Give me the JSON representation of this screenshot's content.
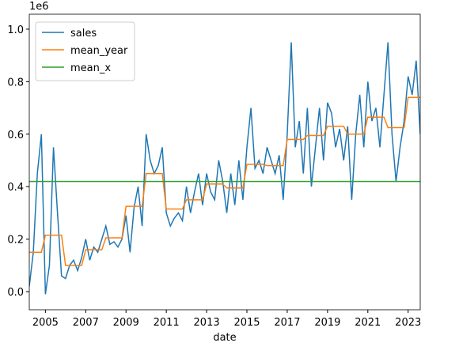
{
  "chart_data": {
    "type": "line",
    "x_label": "date",
    "offset_label": "1e6",
    "xlim": [
      2004.2,
      2023.6
    ],
    "ylim": [
      -0.069,
      1.057
    ],
    "xticks": [
      2005,
      2007,
      2009,
      2011,
      2013,
      2015,
      2017,
      2019,
      2021,
      2023
    ],
    "yticks": [
      {
        "value": 0,
        "label": "0.0"
      },
      {
        "value": 0.2,
        "label": "0.2"
      },
      {
        "value": 0.4,
        "label": "0.4"
      },
      {
        "value": 0.6,
        "label": "0.6"
      },
      {
        "value": 0.8,
        "label": "0.8"
      },
      {
        "value": 1,
        "label": "1.0"
      }
    ],
    "legend": "upper left",
    "x": [
      2004.2,
      2004.4,
      2004.6,
      2004.8,
      2005,
      2005.2,
      2005.4,
      2005.6,
      2005.8,
      2006,
      2006.2,
      2006.4,
      2006.6,
      2006.8,
      2007,
      2007.2,
      2007.4,
      2007.6,
      2007.8,
      2008,
      2008.2,
      2008.4,
      2008.6,
      2008.8,
      2009,
      2009.2,
      2009.4,
      2009.6,
      2009.8,
      2010,
      2010.2,
      2010.4,
      2010.6,
      2010.8,
      2011,
      2011.2,
      2011.4,
      2011.6,
      2011.8,
      2012,
      2012.2,
      2012.4,
      2012.6,
      2012.8,
      2013,
      2013.2,
      2013.4,
      2013.6,
      2013.8,
      2014,
      2014.2,
      2014.4,
      2014.6,
      2014.8,
      2015,
      2015.2,
      2015.4,
      2015.6,
      2015.8,
      2016,
      2016.2,
      2016.4,
      2016.6,
      2016.8,
      2017,
      2017.2,
      2017.4,
      2017.6,
      2017.8,
      2018,
      2018.2,
      2018.4,
      2018.6,
      2018.8,
      2019,
      2019.2,
      2019.4,
      2019.6,
      2019.8,
      2020,
      2020.2,
      2020.4,
      2020.6,
      2020.8,
      2021,
      2021.2,
      2021.4,
      2021.6,
      2021.8,
      2022,
      2022.2,
      2022.4,
      2022.6,
      2022.8,
      2023,
      2023.2,
      2023.4,
      2023.6
    ],
    "series": [
      {
        "name": "sales",
        "color": "#1f77b4",
        "values": [
          0.02,
          0.15,
          0.45,
          0.6,
          -0.01,
          0.1,
          0.55,
          0.3,
          0.06,
          0.05,
          0.1,
          0.12,
          0.08,
          0.13,
          0.2,
          0.12,
          0.17,
          0.15,
          0.2,
          0.25,
          0.18,
          0.19,
          0.17,
          0.2,
          0.29,
          0.15,
          0.32,
          0.4,
          0.25,
          0.6,
          0.5,
          0.45,
          0.48,
          0.55,
          0.3,
          0.25,
          0.28,
          0.3,
          0.27,
          0.4,
          0.3,
          0.38,
          0.45,
          0.33,
          0.45,
          0.38,
          0.35,
          0.5,
          0.42,
          0.3,
          0.45,
          0.33,
          0.5,
          0.35,
          0.55,
          0.7,
          0.47,
          0.5,
          0.45,
          0.55,
          0.5,
          0.45,
          0.52,
          0.35,
          0.6,
          0.95,
          0.55,
          0.65,
          0.45,
          0.7,
          0.4,
          0.55,
          0.7,
          0.5,
          0.72,
          0.68,
          0.55,
          0.62,
          0.5,
          0.63,
          0.35,
          0.6,
          0.75,
          0.55,
          0.8,
          0.65,
          0.7,
          0.55,
          0.75,
          0.95,
          0.6,
          0.42,
          0.55,
          0.65,
          0.82,
          0.75,
          0.88,
          0.6
        ]
      },
      {
        "name": "mean_year",
        "color": "#ff7f0e",
        "values": [
          0.15,
          0.15,
          0.15,
          0.15,
          0.215,
          0.215,
          0.215,
          0.215,
          0.215,
          0.1,
          0.1,
          0.1,
          0.1,
          0.1,
          0.16,
          0.16,
          0.16,
          0.16,
          0.16,
          0.205,
          0.205,
          0.205,
          0.205,
          0.205,
          0.325,
          0.325,
          0.325,
          0.325,
          0.325,
          0.45,
          0.45,
          0.45,
          0.45,
          0.45,
          0.315,
          0.315,
          0.315,
          0.315,
          0.315,
          0.35,
          0.35,
          0.35,
          0.35,
          0.35,
          0.41,
          0.41,
          0.41,
          0.41,
          0.41,
          0.395,
          0.395,
          0.395,
          0.395,
          0.395,
          0.485,
          0.485,
          0.485,
          0.485,
          0.485,
          0.48,
          0.48,
          0.48,
          0.48,
          0.48,
          0.58,
          0.58,
          0.58,
          0.58,
          0.58,
          0.595,
          0.595,
          0.595,
          0.595,
          0.595,
          0.63,
          0.63,
          0.63,
          0.63,
          0.63,
          0.6,
          0.6,
          0.6,
          0.6,
          0.6,
          0.665,
          0.665,
          0.665,
          0.665,
          0.665,
          0.625,
          0.625,
          0.625,
          0.625,
          0.625,
          0.74,
          0.74,
          0.74,
          0.74
        ]
      },
      {
        "name": "mean_x",
        "color": "#2ca02c",
        "x": [
          2004.2,
          2023.6
        ],
        "values": [
          0.42,
          0.42
        ]
      }
    ]
  }
}
